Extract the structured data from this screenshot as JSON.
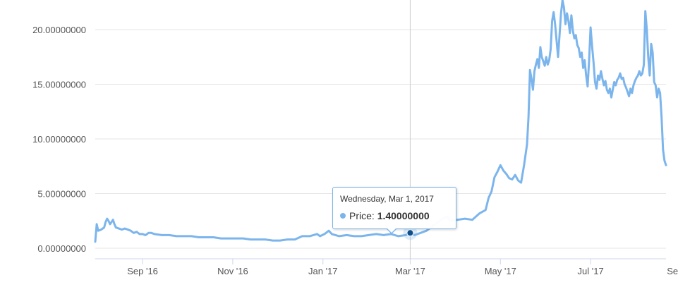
{
  "chart_data": {
    "type": "line",
    "y_ticks": [
      "0.00000000",
      "5.00000000",
      "10.00000000",
      "15.00000000",
      "20.00000000"
    ],
    "y_tick_values": [
      0,
      5,
      10,
      15,
      20
    ],
    "x_ticks": [
      "Sep '16",
      "Nov '16",
      "Jan '17",
      "Mar '17",
      "May '17",
      "Jul '17",
      "Sep '17"
    ],
    "x_tick_days": [
      32,
      93,
      154,
      213,
      274,
      335,
      397
    ],
    "ylim": [
      0,
      23
    ],
    "grid": true,
    "line_color": "#7cb5ec",
    "series": [
      {
        "values": [
          [
            0,
            0.6
          ],
          [
            1,
            2.2
          ],
          [
            2,
            1.6
          ],
          [
            4,
            1.7
          ],
          [
            6,
            1.9
          ],
          [
            7,
            2.4
          ],
          [
            8,
            2.7
          ],
          [
            9,
            2.5
          ],
          [
            10,
            2.2
          ],
          [
            11,
            2.4
          ],
          [
            12,
            2.6
          ],
          [
            13,
            2.2
          ],
          [
            14,
            1.9
          ],
          [
            16,
            1.8
          ],
          [
            18,
            1.7
          ],
          [
            20,
            1.8
          ],
          [
            22,
            1.7
          ],
          [
            24,
            1.6
          ],
          [
            26,
            1.4
          ],
          [
            28,
            1.5
          ],
          [
            30,
            1.3
          ],
          [
            32,
            1.3
          ],
          [
            34,
            1.2
          ],
          [
            36,
            1.4
          ],
          [
            38,
            1.4
          ],
          [
            40,
            1.3
          ],
          [
            45,
            1.2
          ],
          [
            50,
            1.2
          ],
          [
            55,
            1.1
          ],
          [
            60,
            1.1
          ],
          [
            65,
            1.1
          ],
          [
            70,
            1.0
          ],
          [
            75,
            1.0
          ],
          [
            80,
            1.0
          ],
          [
            85,
            0.9
          ],
          [
            90,
            0.9
          ],
          [
            95,
            0.9
          ],
          [
            100,
            0.9
          ],
          [
            105,
            0.8
          ],
          [
            110,
            0.8
          ],
          [
            115,
            0.8
          ],
          [
            120,
            0.7
          ],
          [
            125,
            0.7
          ],
          [
            130,
            0.8
          ],
          [
            135,
            0.8
          ],
          [
            140,
            1.1
          ],
          [
            145,
            1.1
          ],
          [
            150,
            1.3
          ],
          [
            152,
            1.1
          ],
          [
            155,
            1.3
          ],
          [
            158,
            1.6
          ],
          [
            160,
            1.3
          ],
          [
            165,
            1.1
          ],
          [
            170,
            1.2
          ],
          [
            175,
            1.1
          ],
          [
            180,
            1.1
          ],
          [
            185,
            1.2
          ],
          [
            190,
            1.3
          ],
          [
            195,
            1.2
          ],
          [
            200,
            1.3
          ],
          [
            205,
            1.1
          ],
          [
            210,
            1.2
          ],
          [
            213,
            1.4
          ],
          [
            216,
            1.2
          ],
          [
            220,
            1.4
          ],
          [
            224,
            1.6
          ],
          [
            228,
            2.0
          ],
          [
            232,
            2.4
          ],
          [
            235,
            2.7
          ],
          [
            238,
            2.9
          ],
          [
            240,
            2.5
          ],
          [
            245,
            2.6
          ],
          [
            250,
            2.7
          ],
          [
            255,
            2.6
          ],
          [
            260,
            3.2
          ],
          [
            264,
            3.5
          ],
          [
            266,
            4.6
          ],
          [
            268,
            5.2
          ],
          [
            270,
            6.5
          ],
          [
            272,
            7.0
          ],
          [
            274,
            7.6
          ],
          [
            276,
            7.1
          ],
          [
            278,
            6.8
          ],
          [
            280,
            6.4
          ],
          [
            282,
            6.3
          ],
          [
            284,
            6.7
          ],
          [
            286,
            6.2
          ],
          [
            288,
            6.0
          ],
          [
            290,
            7.6
          ],
          [
            292,
            9.5
          ],
          [
            293,
            12.0
          ],
          [
            294,
            16.3
          ],
          [
            295,
            15.5
          ],
          [
            296,
            14.5
          ],
          [
            297,
            16.2
          ],
          [
            298,
            16.8
          ],
          [
            299,
            17.3
          ],
          [
            300,
            16.5
          ],
          [
            301,
            18.4
          ],
          [
            302,
            17.5
          ],
          [
            303,
            17.1
          ],
          [
            304,
            16.7
          ],
          [
            305,
            17.5
          ],
          [
            306,
            16.8
          ],
          [
            307,
            17.2
          ],
          [
            308,
            18.2
          ],
          [
            309,
            20.8
          ],
          [
            310,
            21.6
          ],
          [
            311,
            20.5
          ],
          [
            312,
            19.0
          ],
          [
            313,
            17.5
          ],
          [
            314,
            19.5
          ],
          [
            315,
            21.5
          ],
          [
            316,
            22.7
          ],
          [
            317,
            22.0
          ],
          [
            318,
            20.5
          ],
          [
            319,
            21.5
          ],
          [
            320,
            20.8
          ],
          [
            321,
            19.7
          ],
          [
            322,
            21.3
          ],
          [
            323,
            19.9
          ],
          [
            324,
            19.2
          ],
          [
            325,
            19.5
          ],
          [
            326,
            18.6
          ],
          [
            327,
            18.3
          ],
          [
            328,
            17.5
          ],
          [
            329,
            17.9
          ],
          [
            330,
            16.5
          ],
          [
            331,
            17.2
          ],
          [
            332,
            15.8
          ],
          [
            333,
            14.8
          ],
          [
            334,
            17.2
          ],
          [
            335,
            20.2
          ],
          [
            336,
            18.5
          ],
          [
            337,
            17.0
          ],
          [
            338,
            15.2
          ],
          [
            339,
            14.6
          ],
          [
            340,
            15.8
          ],
          [
            341,
            15.4
          ],
          [
            342,
            16.2
          ],
          [
            343,
            15.5
          ],
          [
            344,
            14.9
          ],
          [
            345,
            15.3
          ],
          [
            346,
            14.5
          ],
          [
            347,
            14.2
          ],
          [
            348,
            14.6
          ],
          [
            349,
            13.8
          ],
          [
            350,
            14.5
          ],
          [
            351,
            15.2
          ],
          [
            352,
            14.9
          ],
          [
            353,
            15.4
          ],
          [
            354,
            15.6
          ],
          [
            355,
            16.0
          ],
          [
            356,
            15.5
          ],
          [
            357,
            15.6
          ],
          [
            358,
            15.0
          ],
          [
            359,
            14.7
          ],
          [
            360,
            14.3
          ],
          [
            361,
            13.9
          ],
          [
            362,
            14.6
          ],
          [
            363,
            14.2
          ],
          [
            364,
            14.9
          ],
          [
            365,
            15.3
          ],
          [
            366,
            15.6
          ],
          [
            367,
            15.8
          ],
          [
            368,
            16.2
          ],
          [
            369,
            15.8
          ],
          [
            370,
            16.0
          ],
          [
            371,
            16.8
          ],
          [
            372,
            21.7
          ],
          [
            373,
            20.0
          ],
          [
            374,
            17.5
          ],
          [
            375,
            15.8
          ],
          [
            376,
            18.7
          ],
          [
            377,
            17.9
          ],
          [
            378,
            15.2
          ],
          [
            379,
            14.9
          ],
          [
            380,
            13.8
          ],
          [
            381,
            14.6
          ],
          [
            382,
            14.2
          ],
          [
            383,
            12.0
          ],
          [
            384,
            9.0
          ],
          [
            385,
            8.0
          ],
          [
            386,
            7.6
          ]
        ]
      }
    ],
    "tooltip": {
      "date": "Wednesday, Mar 1, 2017",
      "label": "Price:",
      "value": "1.40000000",
      "day": 213,
      "y": 1.4
    }
  }
}
